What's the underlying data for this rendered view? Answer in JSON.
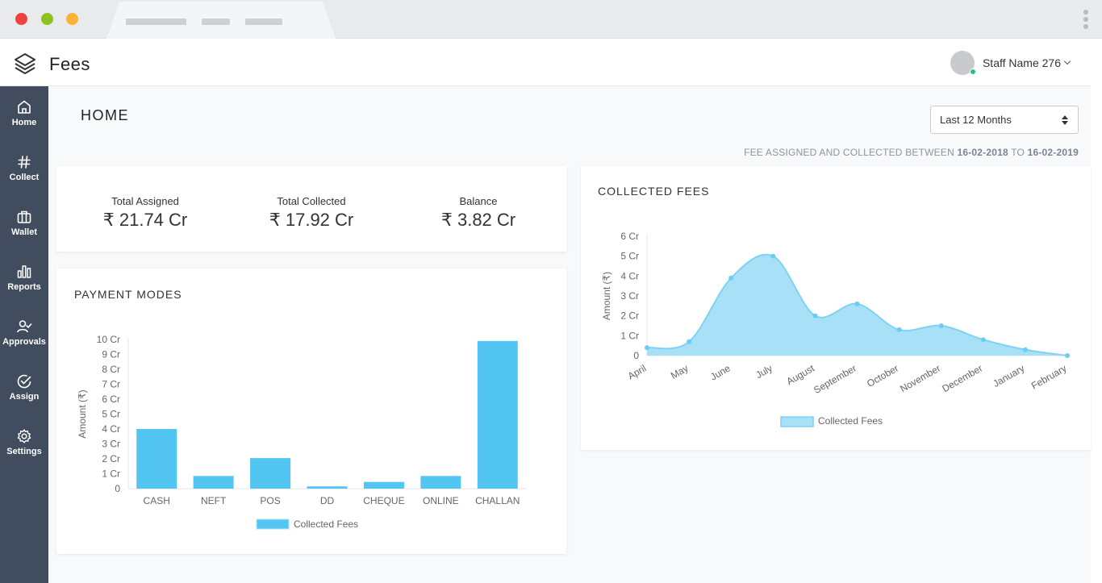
{
  "app": {
    "title": "Fees"
  },
  "user": {
    "name": "Staff Name 276"
  },
  "sidebar": {
    "items": [
      {
        "label": "Home",
        "icon": "home-icon"
      },
      {
        "label": "Collect",
        "icon": "hash-icon"
      },
      {
        "label": "Wallet",
        "icon": "wallet-icon"
      },
      {
        "label": "Reports",
        "icon": "bar-chart-icon"
      },
      {
        "label": "Approvals",
        "icon": "user-check-icon"
      },
      {
        "label": "Assign",
        "icon": "check-circle-icon"
      },
      {
        "label": "Settings",
        "icon": "gear-icon"
      }
    ]
  },
  "page": {
    "title": "HOME",
    "range_select": "Last 12 Months",
    "range_prefix": "FEE ASSIGNED AND COLLECTED BETWEEN",
    "range_from": "16-02-2018",
    "range_to_word": "TO",
    "range_to": "16-02-2019"
  },
  "summary": {
    "assigned_label": "Total Assigned",
    "assigned_value": "₹ 21.74 Cr",
    "collected_label": "Total Collected",
    "collected_value": "₹ 17.92 Cr",
    "balance_label": "Balance",
    "balance_value": "₹ 3.82 Cr"
  },
  "colors": {
    "sidebar": "#414c5f",
    "bar": "#52c5f2",
    "area_fill": "#a8e1f7",
    "area_line": "#7dd3f3"
  },
  "chart_data": [
    {
      "type": "bar",
      "title": "PAYMENT MODES",
      "ylabel": "Amount (₹)",
      "categories": [
        "CASH",
        "NEFT",
        "POS",
        "DD",
        "CHEQUE",
        "ONLINE",
        "CHALLAN"
      ],
      "values": [
        4.0,
        0.85,
        2.05,
        0.15,
        0.45,
        0.85,
        9.9
      ],
      "ylim": [
        0,
        10
      ],
      "yticks": [
        "0",
        "1 Cr",
        "2 Cr",
        "3 Cr",
        "4 Cr",
        "5 Cr",
        "6 Cr",
        "7 Cr",
        "8 Cr",
        "9 Cr",
        "10 Cr"
      ],
      "legend": "Collected Fees",
      "legend_position": "bottom"
    },
    {
      "type": "area",
      "title": "COLLECTED FEES",
      "ylabel": "Amount (₹)",
      "categories": [
        "April",
        "May",
        "June",
        "July",
        "August",
        "September",
        "October",
        "November",
        "December",
        "January",
        "February"
      ],
      "values": [
        0.4,
        0.7,
        3.9,
        5.0,
        2.0,
        2.6,
        1.3,
        1.5,
        0.8,
        0.3,
        0.0
      ],
      "ylim": [
        0,
        6
      ],
      "yticks": [
        "0",
        "1 Cr",
        "2 Cr",
        "3 Cr",
        "4 Cr",
        "5 Cr",
        "6 Cr"
      ],
      "legend": "Collected Fees",
      "legend_position": "bottom"
    }
  ]
}
